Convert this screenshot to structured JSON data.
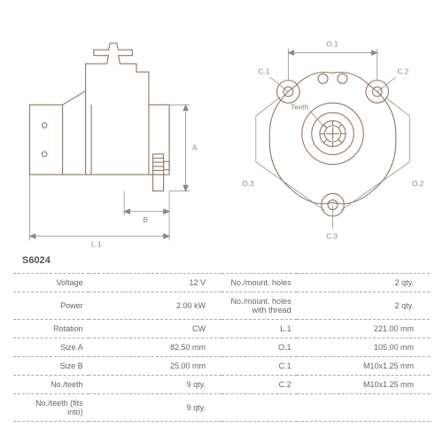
{
  "part_number": "S6024",
  "diagram_left": {
    "dimensions": {
      "L1": "L.1",
      "A": "A",
      "B": "B"
    },
    "stroke": "#8a7a6a",
    "stroke_width": 1.2
  },
  "diagram_right": {
    "labels": {
      "O1": "O.1",
      "O2": "O.2",
      "O3": "O.3",
      "C1": "C.1",
      "C2": "C.2",
      "C3": "C.3",
      "teeth": "Teeth"
    },
    "stroke": "#8a7a6a",
    "stroke_width": 1.2
  },
  "specs": [
    {
      "l1": "Voltage",
      "v1": "12 V",
      "l2": "No./mount. holes",
      "v2": "2 qty."
    },
    {
      "l1": "Power",
      "v1": "2.00 kW",
      "l2": "No./mount. holes with thread",
      "v2": "2 qty."
    },
    {
      "l1": "Rotation",
      "v1": "CW",
      "l2": "L.1",
      "v2": "221.00 mm"
    },
    {
      "l1": "Size A",
      "v1": "82.50 mm",
      "l2": "O.1",
      "v2": "105.00 mm"
    },
    {
      "l1": "Size B",
      "v1": "25.00 mm",
      "l2": "C.1",
      "v2": "M10x1.25 mm"
    },
    {
      "l1": "No./teeth",
      "v1": "9 qty.",
      "l2": "C.2",
      "v2": "M10x1.25 mm"
    },
    {
      "l1": "No./teeth (fits into)",
      "v1": "9 qty.",
      "l2": "",
      "v2": ""
    }
  ],
  "colors": {
    "text": "#666666",
    "line": "#8a7a6a",
    "dash": "#aaaaaa"
  }
}
